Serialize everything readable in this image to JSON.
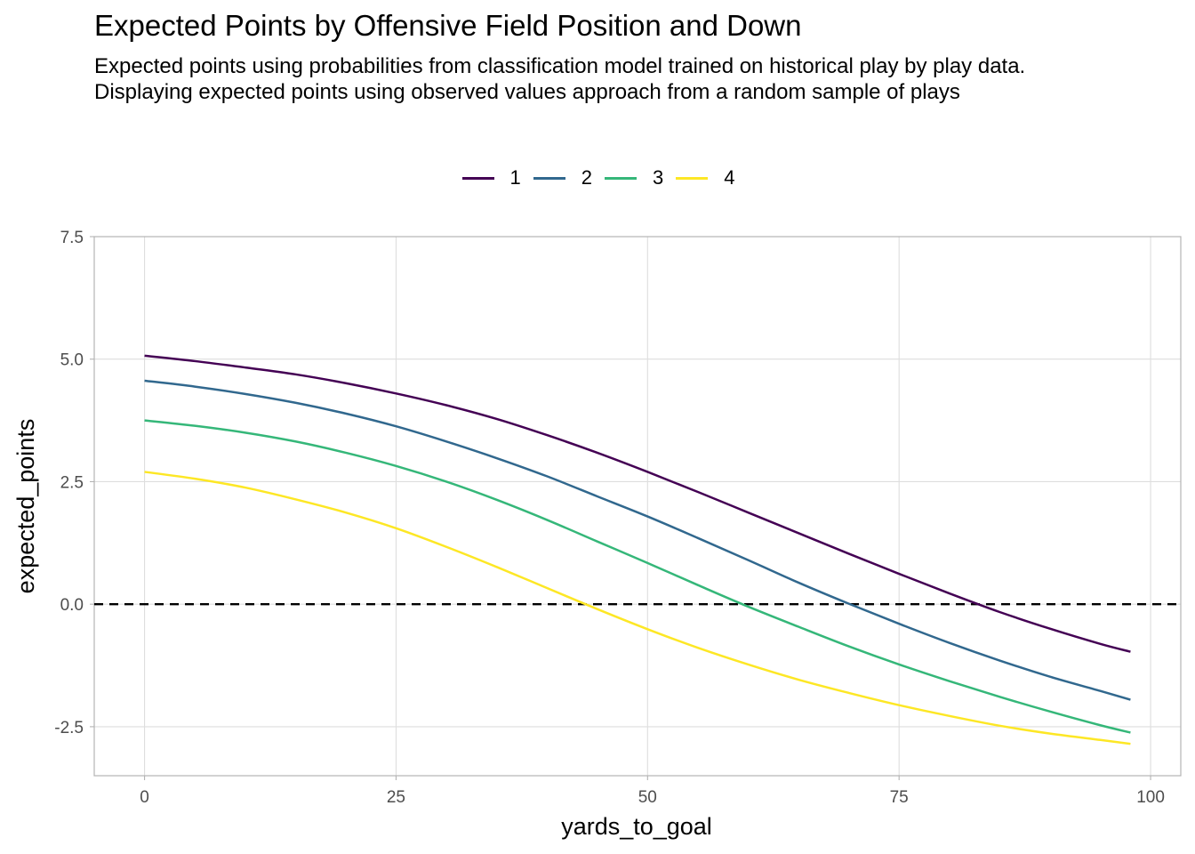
{
  "chart_data": {
    "type": "line",
    "title": "Expected Points by Offensive Field Position and Down",
    "subtitle": "Expected points using probabilities from classification model trained on historical play by play data. Displaying expected points using observed values approach from a random sample of plays",
    "xlabel": "yards_to_goal",
    "ylabel": "expected_points",
    "xlim": [
      -5,
      103
    ],
    "ylim": [
      -3.5,
      7.5
    ],
    "x_ticks": [
      "0",
      "25",
      "50",
      "75",
      "100"
    ],
    "y_ticks": [
      "-2.5",
      "0.0",
      "2.5",
      "5.0",
      "7.5"
    ],
    "grid": true,
    "legend_position": "top",
    "reference_line": {
      "y": 0,
      "style": "dashed",
      "color": "#000000"
    },
    "x": [
      0,
      5,
      10,
      15,
      20,
      25,
      30,
      35,
      40,
      45,
      50,
      55,
      60,
      65,
      70,
      75,
      80,
      85,
      90,
      95,
      98
    ],
    "series": [
      {
        "name": "1",
        "color": "#440154",
        "values": [
          5.07,
          4.96,
          4.83,
          4.69,
          4.51,
          4.3,
          4.06,
          3.78,
          3.45,
          3.09,
          2.7,
          2.29,
          1.87,
          1.45,
          1.03,
          0.62,
          0.22,
          -0.16,
          -0.5,
          -0.81,
          -0.97
        ]
      },
      {
        "name": "2",
        "color": "#31688E",
        "values": [
          4.56,
          4.44,
          4.29,
          4.11,
          3.89,
          3.63,
          3.32,
          2.98,
          2.61,
          2.2,
          1.79,
          1.35,
          0.9,
          0.44,
          0.01,
          -0.4,
          -0.79,
          -1.15,
          -1.48,
          -1.77,
          -1.95
        ]
      },
      {
        "name": "3",
        "color": "#35B779",
        "values": [
          3.75,
          3.64,
          3.5,
          3.32,
          3.09,
          2.82,
          2.5,
          2.13,
          1.72,
          1.28,
          0.84,
          0.39,
          -0.05,
          -0.46,
          -0.86,
          -1.23,
          -1.57,
          -1.89,
          -2.19,
          -2.47,
          -2.62
        ]
      },
      {
        "name": "4",
        "color": "#FDE725",
        "values": [
          2.7,
          2.56,
          2.38,
          2.14,
          1.87,
          1.55,
          1.17,
          0.76,
          0.33,
          -0.1,
          -0.51,
          -0.89,
          -1.23,
          -1.54,
          -1.81,
          -2.06,
          -2.28,
          -2.48,
          -2.64,
          -2.77,
          -2.85
        ]
      }
    ]
  }
}
